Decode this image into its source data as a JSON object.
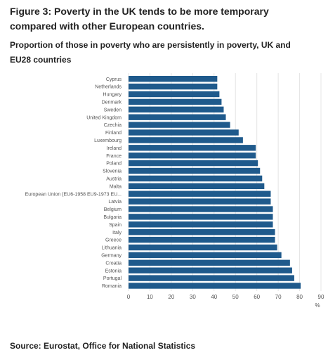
{
  "figure": {
    "title": "Figure 3: Poverty in the UK tends to be more temporary compared with other European countries.",
    "subtitle": "Proportion of those in poverty who are persistently in poverty, UK and EU28 countries",
    "source": "Source: Eurostat, Office for National Statistics"
  },
  "chart_data": {
    "type": "bar",
    "orientation": "horizontal",
    "xunit": "%",
    "xlim": [
      0,
      90
    ],
    "xticks": [
      0,
      10,
      20,
      30,
      40,
      50,
      60,
      70,
      80,
      90
    ],
    "grid": true,
    "bar_color": "#1f5a8c",
    "categories": [
      "Cyprus",
      "Netherlands",
      "Hungary",
      "Denmark",
      "Sweden",
      "United Kingdom",
      "Czechia",
      "Finland",
      "Luxembourg",
      "Ireland",
      "France",
      "Poland",
      "Slovenia",
      "Austria",
      "Malta",
      "European Union (EU6-1958 EU9-1973 EU...",
      "Latvia",
      "Belgium",
      "Bulgaria",
      "Spain",
      "Italy",
      "Greece",
      "Lithuania",
      "Germany",
      "Croatia",
      "Estonia",
      "Portugal",
      "Romania"
    ],
    "values": [
      41.5,
      41.5,
      42.5,
      43.5,
      44.5,
      45.5,
      47.5,
      51.5,
      53.5,
      59.5,
      59.5,
      60.5,
      61.5,
      62.5,
      63.5,
      66.5,
      66.5,
      67.5,
      67.5,
      67.5,
      68.5,
      68.5,
      69.5,
      71.5,
      75.5,
      76.5,
      77.5,
      80.5
    ]
  }
}
